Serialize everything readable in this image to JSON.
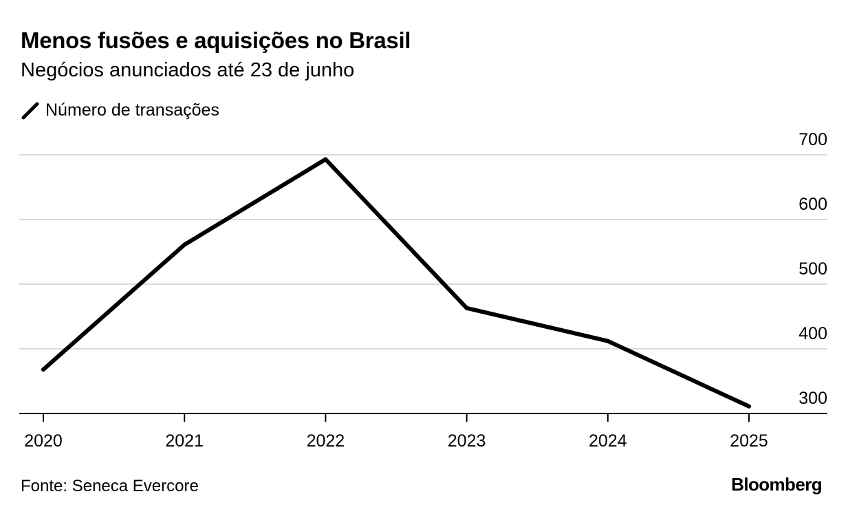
{
  "title": "Menos fusões e aquisições no Brasil",
  "subtitle": "Negócios anunciados até 23 de junho",
  "source": "Fonte: Seneca Evercore",
  "brand": "Bloomberg",
  "colors": {
    "line": "#000000",
    "grid": "#d9d9d9",
    "axis": "#000000",
    "text": "#000000"
  },
  "chart_data": {
    "type": "line",
    "x": [
      "2020",
      "2021",
      "2022",
      "2023",
      "2024",
      "2025"
    ],
    "series": [
      {
        "name": "Número de transações",
        "values": [
          368,
          561,
          693,
          463,
          412,
          311
        ]
      }
    ],
    "y_ticks": [
      "300",
      "400",
      "500",
      "600",
      "700"
    ],
    "ylim": [
      300,
      700
    ],
    "grid": true,
    "legend": "top-left",
    "y_axis_position": "right"
  }
}
